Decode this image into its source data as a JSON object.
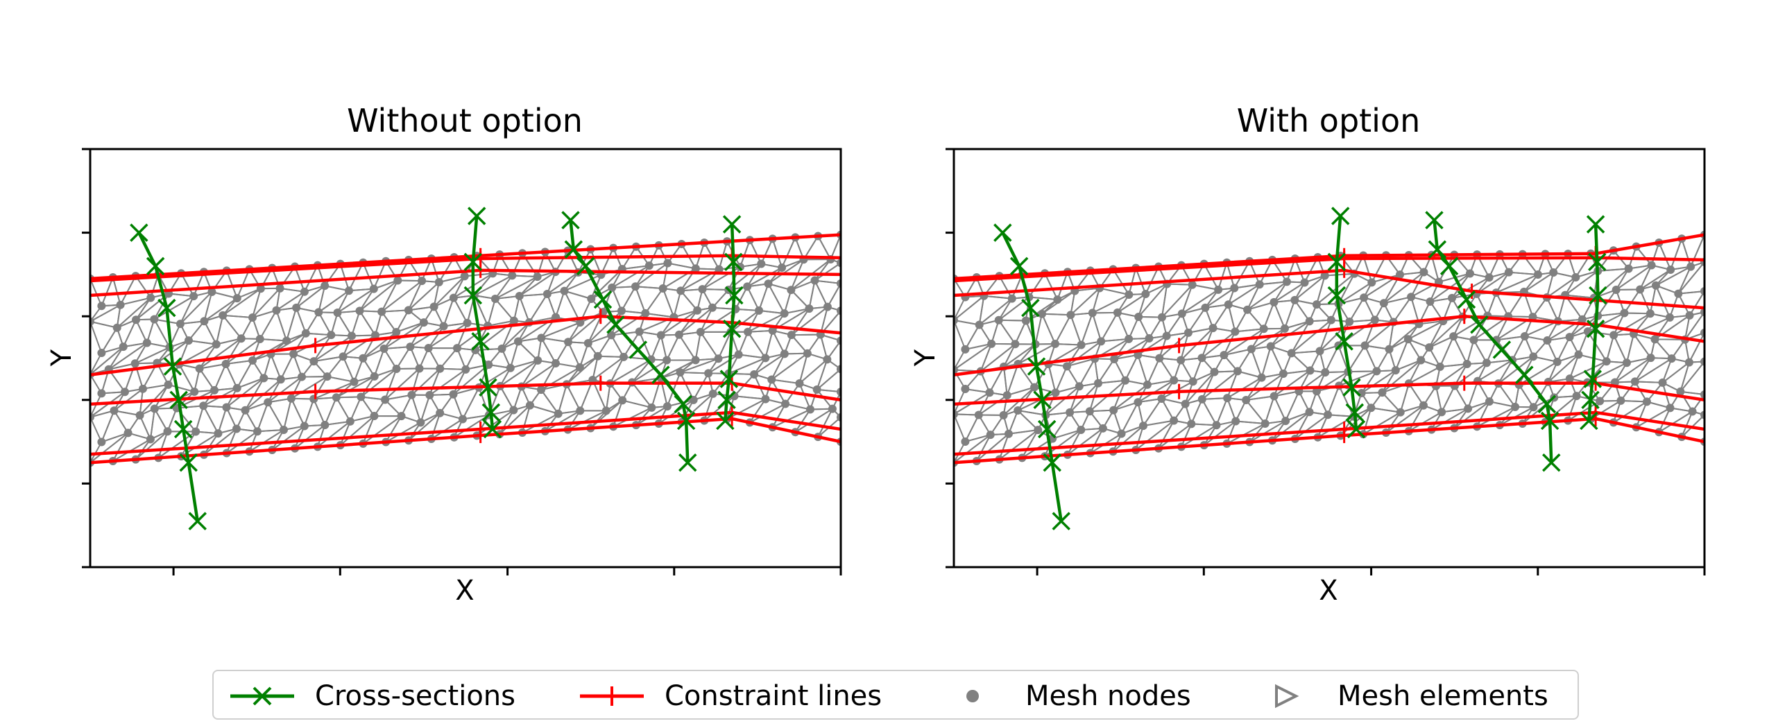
{
  "colors": {
    "cross_section": "#008000",
    "constraint": "#ff0000",
    "mesh": "#808080",
    "axes": "#000000"
  },
  "legend": {
    "cross_sections": "Cross-sections",
    "constraint_lines": "Constraint lines",
    "mesh_nodes": "Mesh nodes",
    "mesh_elements": "Mesh elements"
  },
  "chart_data": [
    {
      "type": "scatter",
      "title": "Without option",
      "xlabel": "X",
      "ylabel": "Y",
      "xlim": [
        0,
        1
      ],
      "ylim": [
        0,
        1
      ],
      "show_tick_labels": false,
      "series": [
        {
          "name": "Cross-sections",
          "marker": "x",
          "lines": [
            [
              [
                0.065,
                0.8
              ],
              [
                0.087,
                0.72
              ],
              [
                0.102,
                0.62
              ],
              [
                0.11,
                0.48
              ],
              [
                0.118,
                0.4
              ],
              [
                0.124,
                0.33
              ],
              [
                0.131,
                0.25
              ],
              [
                0.143,
                0.11
              ]
            ],
            [
              [
                0.515,
                0.84
              ],
              [
                0.51,
                0.73
              ],
              [
                0.51,
                0.65
              ],
              [
                0.52,
                0.54
              ],
              [
                0.53,
                0.43
              ],
              [
                0.534,
                0.37
              ],
              [
                0.536,
                0.33
              ]
            ],
            [
              [
                0.64,
                0.83
              ],
              [
                0.644,
                0.76
              ],
              [
                0.66,
                0.72
              ],
              [
                0.683,
                0.64
              ],
              [
                0.7,
                0.58
              ],
              [
                0.73,
                0.52
              ],
              [
                0.76,
                0.46
              ],
              [
                0.79,
                0.39
              ],
              [
                0.794,
                0.35
              ],
              [
                0.796,
                0.25
              ]
            ],
            [
              [
                0.855,
                0.82
              ],
              [
                0.857,
                0.73
              ],
              [
                0.858,
                0.65
              ],
              [
                0.855,
                0.57
              ],
              [
                0.851,
                0.45
              ],
              [
                0.848,
                0.4
              ],
              [
                0.846,
                0.35
              ]
            ]
          ]
        },
        {
          "name": "Constraint lines",
          "lines": [
            [
              [
                0,
                0.69
              ],
              [
                0.52,
                0.745
              ],
              [
                1.0,
                0.795
              ]
            ],
            [
              [
                0,
                0.685
              ],
              [
                0.52,
                0.738
              ],
              [
                0.855,
                0.745
              ],
              [
                1.0,
                0.74
              ]
            ],
            [
              [
                0,
                0.65
              ],
              [
                0.52,
                0.71
              ],
              [
                1.0,
                0.7
              ]
            ],
            [
              [
                0,
                0.46
              ],
              [
                0.3,
                0.53
              ],
              [
                0.68,
                0.6
              ],
              [
                0.855,
                0.585
              ],
              [
                1.0,
                0.56
              ]
            ],
            [
              [
                0,
                0.39
              ],
              [
                0.3,
                0.42
              ],
              [
                0.68,
                0.44
              ],
              [
                0.855,
                0.44
              ],
              [
                1.0,
                0.4
              ]
            ],
            [
              [
                0,
                0.27
              ],
              [
                0.52,
                0.33
              ],
              [
                0.855,
                0.37
              ],
              [
                1.0,
                0.33
              ]
            ],
            [
              [
                0,
                0.25
              ],
              [
                0.52,
                0.315
              ],
              [
                0.855,
                0.355
              ],
              [
                1.0,
                0.3
              ]
            ]
          ]
        },
        {
          "name": "Mesh nodes"
        },
        {
          "name": "Mesh elements"
        }
      ]
    },
    {
      "type": "scatter",
      "title": "With option",
      "xlabel": "X",
      "ylabel": "Y",
      "xlim": [
        0,
        1
      ],
      "ylim": [
        0,
        1
      ],
      "show_tick_labels": false,
      "series": [
        {
          "name": "Cross-sections",
          "marker": "x",
          "lines": [
            [
              [
                0.065,
                0.8
              ],
              [
                0.087,
                0.72
              ],
              [
                0.102,
                0.62
              ],
              [
                0.11,
                0.48
              ],
              [
                0.118,
                0.4
              ],
              [
                0.124,
                0.33
              ],
              [
                0.131,
                0.25
              ],
              [
                0.143,
                0.11
              ]
            ],
            [
              [
                0.515,
                0.84
              ],
              [
                0.51,
                0.73
              ],
              [
                0.51,
                0.65
              ],
              [
                0.52,
                0.54
              ],
              [
                0.53,
                0.43
              ],
              [
                0.534,
                0.37
              ],
              [
                0.536,
                0.33
              ]
            ],
            [
              [
                0.64,
                0.83
              ],
              [
                0.644,
                0.76
              ],
              [
                0.66,
                0.72
              ],
              [
                0.683,
                0.64
              ],
              [
                0.7,
                0.58
              ],
              [
                0.73,
                0.52
              ],
              [
                0.76,
                0.46
              ],
              [
                0.79,
                0.39
              ],
              [
                0.794,
                0.35
              ],
              [
                0.796,
                0.25
              ]
            ],
            [
              [
                0.855,
                0.82
              ],
              [
                0.857,
                0.73
              ],
              [
                0.858,
                0.65
              ],
              [
                0.855,
                0.57
              ],
              [
                0.851,
                0.45
              ],
              [
                0.848,
                0.4
              ],
              [
                0.846,
                0.35
              ]
            ]
          ]
        },
        {
          "name": "Constraint lines",
          "lines": [
            [
              [
                0,
                0.69
              ],
              [
                0.52,
                0.745
              ],
              [
                0.855,
                0.75
              ],
              [
                1.0,
                0.795
              ]
            ],
            [
              [
                0,
                0.685
              ],
              [
                0.52,
                0.738
              ],
              [
                0.855,
                0.74
              ],
              [
                1.0,
                0.735
              ]
            ],
            [
              [
                0,
                0.65
              ],
              [
                0.52,
                0.71
              ],
              [
                0.69,
                0.66
              ],
              [
                1.0,
                0.62
              ]
            ],
            [
              [
                0,
                0.46
              ],
              [
                0.3,
                0.53
              ],
              [
                0.68,
                0.6
              ],
              [
                0.855,
                0.58
              ],
              [
                1.0,
                0.54
              ]
            ],
            [
              [
                0,
                0.39
              ],
              [
                0.3,
                0.42
              ],
              [
                0.68,
                0.44
              ],
              [
                0.855,
                0.44
              ],
              [
                1.0,
                0.4
              ]
            ],
            [
              [
                0,
                0.27
              ],
              [
                0.52,
                0.33
              ],
              [
                0.855,
                0.37
              ],
              [
                1.0,
                0.33
              ]
            ],
            [
              [
                0,
                0.25
              ],
              [
                0.52,
                0.315
              ],
              [
                0.855,
                0.355
              ],
              [
                1.0,
                0.3
              ]
            ]
          ]
        },
        {
          "name": "Mesh nodes"
        },
        {
          "name": "Mesh elements"
        }
      ]
    }
  ]
}
